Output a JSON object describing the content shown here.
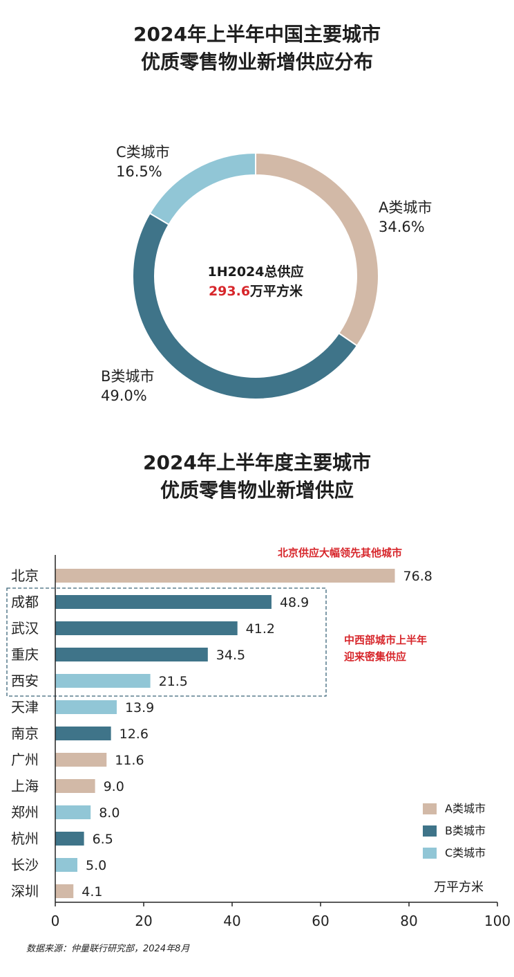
{
  "colors": {
    "A": "#d2b9a7",
    "B": "#3f7489",
    "C": "#91c6d6",
    "highlight_red": "#d7262b",
    "box_dash": "#3a6478"
  },
  "donut": {
    "title_line1": "2024年上半年中国主要城市",
    "title_line2": "优质零售物业新增供应分布",
    "center_line1": "1H2024总供应",
    "center_value": "293.6",
    "center_unit": "万平方米",
    "chart_data": {
      "type": "pie",
      "labels": [
        "A类城市",
        "B类城市",
        "C类城市"
      ],
      "values": [
        34.6,
        49.0,
        16.5
      ],
      "value_labels": [
        "34.6%",
        "49.0%",
        "16.5%"
      ]
    }
  },
  "bars": {
    "title_line1": "2024年上半年度主要城市",
    "title_line2": "优质零售物业新增供应",
    "annotation_top": "北京供应大幅领先其他城市",
    "annotation_mid_line1": "中西部城市上半年",
    "annotation_mid_line2": "迎来密集供应",
    "unit": "万平方米",
    "legend": [
      {
        "label": "A类城市",
        "cls": "A"
      },
      {
        "label": "B类城市",
        "cls": "B"
      },
      {
        "label": "C类城市",
        "cls": "C"
      }
    ],
    "chart_data": {
      "type": "bar",
      "orientation": "horizontal",
      "categories": [
        "北京",
        "成都",
        "武汉",
        "重庆",
        "西安",
        "天津",
        "南京",
        "广州",
        "上海",
        "郑州",
        "杭州",
        "长沙",
        "深圳"
      ],
      "values": [
        76.8,
        48.9,
        41.2,
        34.5,
        21.5,
        13.9,
        12.6,
        11.6,
        9.0,
        8.0,
        6.5,
        5.0,
        4.1
      ],
      "value_labels": [
        "76.8",
        "48.9",
        "41.2",
        "34.5",
        "21.5",
        "13.9",
        "12.6",
        "11.6",
        "9.0",
        "8.0",
        "6.5",
        "5.0",
        "4.1"
      ],
      "city_class": [
        "A",
        "B",
        "B",
        "B",
        "C",
        "C",
        "B",
        "A",
        "A",
        "C",
        "B",
        "C",
        "A"
      ],
      "xlim": [
        0,
        100
      ],
      "xticks": [
        0,
        20,
        40,
        60,
        80,
        100
      ],
      "xtick_labels": [
        "0",
        "20",
        "40",
        "60",
        "80",
        "100"
      ],
      "highlighted_categories": [
        "成都",
        "武汉",
        "重庆",
        "西安"
      ]
    }
  },
  "source": "数据来源：仲量联行研究部，2024年8月"
}
